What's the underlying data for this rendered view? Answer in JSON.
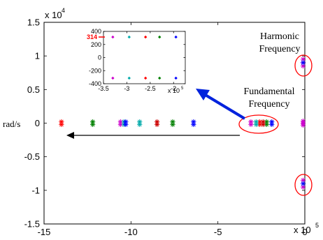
{
  "chart_data": [
    {
      "type": "scatter",
      "title": "",
      "xlabel": "",
      "ylabel": "rad/s",
      "x_exponent_label": "x 10",
      "x_exponent": "5",
      "y_exponent_label": "x 10",
      "y_exponent": "4",
      "xlim": [
        -15,
        0
      ],
      "ylim": [
        -1.5,
        1.5
      ],
      "x_ticks": [
        -15,
        -10,
        -5,
        0
      ],
      "x_tick_labels": [
        "-15",
        "-10",
        "-5",
        "0"
      ],
      "y_ticks": [
        -1.5,
        -1,
        -0.5,
        0,
        0.5,
        1,
        1.5
      ],
      "y_tick_labels": [
        "-1.5",
        "-1",
        "-0.5",
        "0",
        "0.5",
        "1",
        "1.5"
      ],
      "grid": false,
      "series": [
        {
          "color": "#ff0000",
          "x": [
            -14.0,
            -14.0,
            -2.6,
            -2.6
          ],
          "y": [
            0.02,
            -0.02,
            0.02,
            -0.02
          ]
        },
        {
          "color": "#008000",
          "x": [
            -12.2,
            -12.2,
            -7.6,
            -7.6,
            -2.2,
            -2.2
          ],
          "y": [
            0.02,
            -0.02,
            0.02,
            -0.02,
            0.02,
            -0.02
          ]
        },
        {
          "color": "#cc00cc",
          "x": [
            -10.6,
            -10.6,
            -3.1,
            -3.1,
            -0.1,
            -0.1,
            -0.1,
            -0.1,
            -0.1,
            -0.1,
            -0.1,
            -0.1
          ],
          "y": [
            0.02,
            -0.02,
            0.02,
            -0.02,
            0.03,
            0.0,
            -0.03,
            0.95,
            0.85,
            -0.85,
            -0.95,
            0.9
          ]
        },
        {
          "color": "#00aaaa",
          "x": [
            -10.4,
            -10.4,
            -9.5,
            -9.5,
            -2.8,
            -2.8
          ],
          "y": [
            0.02,
            -0.02,
            0.02,
            -0.02,
            0.02,
            -0.02
          ]
        },
        {
          "color": "#0000ff",
          "x": [
            -10.3,
            -10.3,
            -6.4,
            -6.4,
            -1.9,
            -1.9,
            -0.1,
            -0.1
          ],
          "y": [
            0.02,
            -0.02,
            0.02,
            -0.02,
            0.02,
            -0.02,
            0.9,
            -0.9
          ]
        },
        {
          "color": "#cc0000",
          "x": [
            -8.5,
            -8.5,
            -2.4,
            -2.4
          ],
          "y": [
            0.02,
            -0.02,
            0.02,
            -0.02
          ]
        }
      ]
    },
    {
      "type": "scatter",
      "title": "",
      "x_exponent_label": "x 10",
      "x_exponent": "5",
      "xlim": [
        -3.5,
        -1.75
      ],
      "ylim": [
        -400,
        400
      ],
      "x_ticks": [
        -3.5,
        -3,
        -2.5,
        -2
      ],
      "x_tick_labels": [
        "-3.5",
        "-3",
        "-2.5",
        "-2"
      ],
      "y_ticks": [
        -400,
        -200,
        0,
        200,
        400
      ],
      "y_tick_labels": [
        "-400",
        "-200",
        "0",
        "200",
        "400"
      ],
      "highlight_tick": "314",
      "highlight_value": 314,
      "highlight_color": "#ff0000",
      "grid": false,
      "series": [
        {
          "color": "#cc00cc",
          "x": [
            -3.3,
            -3.3
          ],
          "y": [
            314,
            -314
          ]
        },
        {
          "color": "#00aaaa",
          "x": [
            -2.95,
            -2.95
          ],
          "y": [
            314,
            -314
          ]
        },
        {
          "color": "#ff0000",
          "x": [
            -2.6,
            -2.6
          ],
          "y": [
            314,
            -314
          ]
        },
        {
          "color": "#008000",
          "x": [
            -2.3,
            -2.3
          ],
          "y": [
            314,
            -314
          ]
        },
        {
          "color": "#0000ff",
          "x": [
            -1.95,
            -1.95
          ],
          "y": [
            314,
            -314
          ]
        }
      ]
    }
  ],
  "annotations": {
    "harmonic_line1": "Harmonic",
    "harmonic_line2": "Frequency",
    "fundamental_line1": "Fundamental",
    "fundamental_line2": "Frequency"
  },
  "colors": {
    "axis": "#000000",
    "ellipse": "#ff0000",
    "blue_arrow": "#0022dd",
    "black_arrow": "#000000"
  }
}
